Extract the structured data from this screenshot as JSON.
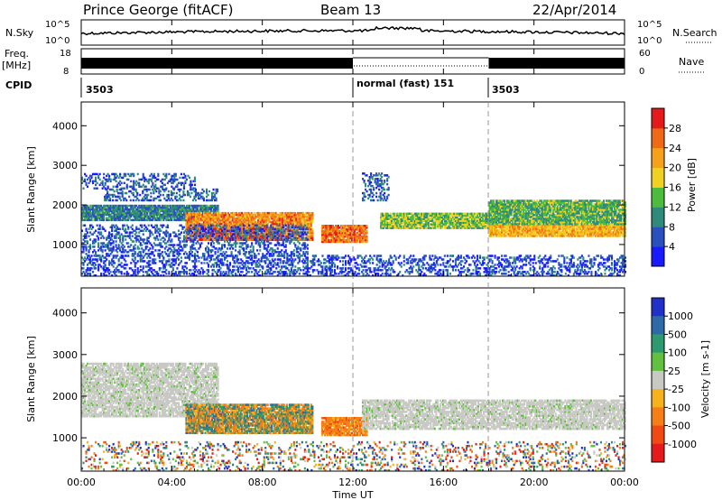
{
  "header": {
    "title": "Prince George (fitACF)",
    "beam": "Beam 13",
    "date": "22/Apr/2014"
  },
  "panels": {
    "sky": {
      "left_label": "N.Sky",
      "left_ticks": [
        "10^5",
        "10^0"
      ],
      "right_ticks": [
        "10^5",
        "10^0"
      ],
      "right_label": "N.Search",
      "right_legend_line": "dotted"
    },
    "freq": {
      "left_label_top": "Freq.",
      "left_label_unit": "[MHz]",
      "left_ticks": [
        "18",
        "8"
      ],
      "right_ticks": [
        "60",
        "0"
      ],
      "right_label": "Nave",
      "right_legend_line": "dotted"
    },
    "cpid": {
      "label": "CPID",
      "segments": [
        {
          "start_hour": 0,
          "text": "3503"
        },
        {
          "start_hour": 12,
          "text": "normal (fast) 151"
        },
        {
          "start_hour": 18,
          "text": "3503"
        }
      ]
    }
  },
  "chart_data": [
    {
      "type": "heatmap",
      "name": "power",
      "xlabel": "",
      "ylabel": "Slant Range [km]",
      "x_range_hours": [
        0,
        24
      ],
      "ylim": [
        200,
        4600
      ],
      "y_ticks": [
        1000,
        2000,
        3000,
        4000
      ],
      "x_ticks_hours": [
        0,
        4,
        8,
        12,
        16,
        20,
        24
      ],
      "colorbar": {
        "label": "Power [dB]",
        "ticks": [
          4,
          8,
          12,
          16,
          20,
          24,
          28
        ],
        "range": [
          0,
          32
        ],
        "colors": [
          "#1a1aff",
          "#2a4fbf",
          "#2f8a7a",
          "#4cbb3e",
          "#f0d020",
          "#f5a21a",
          "#f06a16",
          "#e41a1c"
        ]
      },
      "bands": [
        {
          "t0": 0,
          "t1": 6,
          "r0": 1600,
          "r1": 2000,
          "level": 9
        },
        {
          "t0": 0,
          "t1": 5,
          "r0": 2400,
          "r1": 2800,
          "level": 6
        },
        {
          "t0": 1,
          "t1": 6,
          "r0": 2100,
          "r1": 2400,
          "level": 7
        },
        {
          "t0": 4.6,
          "t1": 10.2,
          "r0": 1100,
          "r1": 1800,
          "level": 24
        },
        {
          "t0": 5.2,
          "t1": 8.8,
          "r0": 1100,
          "r1": 1400,
          "level": 27
        },
        {
          "t0": 10.6,
          "t1": 12.6,
          "r0": 1050,
          "r1": 1500,
          "level": 25
        },
        {
          "t0": 12.4,
          "t1": 13.6,
          "r0": 2100,
          "r1": 2800,
          "level": 7
        },
        {
          "t0": 13.2,
          "t1": 18,
          "r0": 1400,
          "r1": 1800,
          "level": 15
        },
        {
          "t0": 18,
          "t1": 24,
          "r0": 1200,
          "r1": 1500,
          "level": 21
        },
        {
          "t0": 18,
          "t1": 24,
          "r0": 1500,
          "r1": 2100,
          "level": 13
        },
        {
          "t0": 0,
          "t1": 24,
          "r0": 200,
          "r1": 700,
          "level": 5
        },
        {
          "t0": 0,
          "t1": 10,
          "r0": 700,
          "r1": 1500,
          "level": 6
        }
      ]
    },
    {
      "type": "heatmap",
      "name": "velocity",
      "xlabel": "Time UT",
      "ylabel": "Slant Range [km]",
      "x_range_hours": [
        0,
        24
      ],
      "ylim": [
        200,
        4600
      ],
      "y_ticks": [
        1000,
        2000,
        3000,
        4000
      ],
      "x_ticks_hours": [
        0,
        4,
        8,
        12,
        16,
        20,
        24
      ],
      "x_tick_labels": [
        "00:00",
        "04:00",
        "08:00",
        "12:00",
        "16:00",
        "20:00",
        "00:00"
      ],
      "colorbar": {
        "label": "Velocity [m s-1]",
        "ticks": [
          "1000",
          "500",
          "100",
          "25",
          "-25",
          "-100",
          "-500",
          "-1000"
        ],
        "colors": [
          "#2030c8",
          "#2e6aa8",
          "#2e9a70",
          "#62c040",
          "#c9c9c4",
          "#f5b21a",
          "#f57f16",
          "#f04a12",
          "#e41a1c"
        ]
      },
      "bands": [
        {
          "t0": 0,
          "t1": 6,
          "r0": 1500,
          "r1": 2800,
          "class": "ground"
        },
        {
          "t0": 4.6,
          "t1": 10.2,
          "r0": 1100,
          "r1": 1800,
          "class": "mixed"
        },
        {
          "t0": 10.6,
          "t1": 12.6,
          "r0": 1050,
          "r1": 1500,
          "class": "negative"
        },
        {
          "t0": 12.4,
          "t1": 24,
          "r0": 1200,
          "r1": 1900,
          "class": "ground"
        },
        {
          "t0": 0,
          "t1": 24,
          "r0": 200,
          "r1": 900,
          "class": "noise"
        }
      ]
    }
  ],
  "sky_noise": {
    "min_hour": 0,
    "max_hour": 24,
    "level": 0.55
  },
  "nave": {
    "low_interval_hours": [
      12,
      18
    ]
  }
}
